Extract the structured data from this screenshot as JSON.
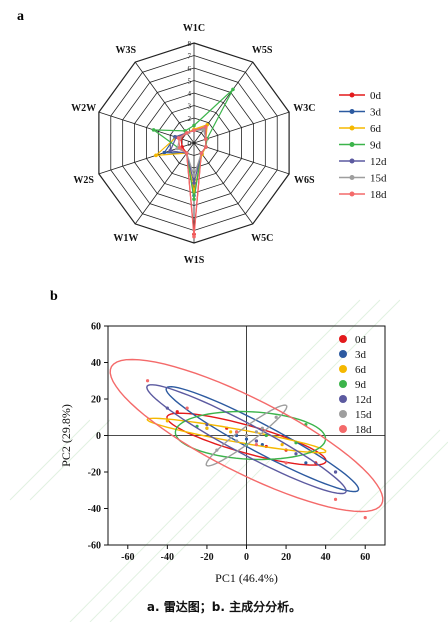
{
  "panel_a_label": "a",
  "panel_b_label": "b",
  "caption": "a. 雷达图；b. 主成分分析。",
  "series_colors": [
    "#e31a1c",
    "#2c5aa0",
    "#f5b800",
    "#3cb44b",
    "#5c5aa0",
    "#9e9e9e",
    "#f46a6a"
  ],
  "chart_data": [
    {
      "type": "radar",
      "axes": [
        "W1C",
        "W5S",
        "W3C",
        "W6S",
        "W5C",
        "W1S",
        "W1W",
        "W2S",
        "W2W",
        "W3S"
      ],
      "r_ticks": [
        "0",
        "1",
        "2",
        "3",
        "4",
        "5",
        "6",
        "7",
        "8"
      ],
      "r_max": 8,
      "legend_position": "right",
      "series": [
        {
          "name": "0d",
          "values": [
            1.0,
            1.6,
            1.0,
            1.0,
            1.0,
            7.3,
            1.0,
            1.0,
            1.1,
            1.0
          ]
        },
        {
          "name": "3d",
          "values": [
            1.0,
            1.5,
            1.0,
            1.0,
            1.0,
            4.2,
            1.0,
            2.5,
            1.6,
            1.0
          ]
        },
        {
          "name": "6d",
          "values": [
            1.1,
            1.8,
            1.0,
            1.0,
            1.1,
            3.9,
            1.0,
            3.2,
            1.5,
            1.0
          ]
        },
        {
          "name": "9d",
          "values": [
            1.4,
            5.3,
            1.1,
            1.0,
            1.0,
            4.5,
            1.0,
            1.3,
            3.4,
            1.2
          ]
        },
        {
          "name": "12d",
          "values": [
            1.0,
            1.6,
            1.0,
            1.0,
            1.0,
            3.2,
            1.0,
            2.0,
            1.5,
            1.0
          ]
        },
        {
          "name": "15d",
          "values": [
            1.0,
            1.3,
            1.0,
            1.0,
            1.0,
            2.6,
            1.0,
            1.4,
            1.2,
            1.0
          ]
        },
        {
          "name": "18d",
          "values": [
            1.0,
            1.6,
            1.0,
            1.0,
            1.0,
            7.5,
            1.0,
            1.2,
            1.3,
            1.0
          ]
        }
      ]
    },
    {
      "type": "scatter",
      "xlabel": "PC1 (46.4%)",
      "ylabel": "PC2 (29.8%)",
      "xlim": [
        -70,
        70
      ],
      "ylim": [
        -60,
        60
      ],
      "x_ticks": [
        -60,
        -40,
        -20,
        0,
        20,
        40,
        60
      ],
      "y_ticks": [
        -60,
        -40,
        -20,
        0,
        20,
        40,
        60
      ],
      "legend_position": "top-right",
      "series": [
        {
          "name": "0d",
          "points": [
            [
              -35,
              13
            ],
            [
              -20,
              6
            ],
            [
              5,
              -3
            ],
            [
              20,
              -8
            ],
            [
              35,
              -15
            ],
            [
              -10,
              4
            ],
            [
              10,
              -6
            ]
          ],
          "ellipse": {
            "cx": 0,
            "cy": -2,
            "rx": 42,
            "ry": 7.5,
            "angle": -17
          }
        },
        {
          "name": "3d",
          "points": [
            [
              -20,
              4
            ],
            [
              -5,
              0
            ],
            [
              8,
              -5
            ],
            [
              30,
              -15
            ],
            [
              45,
              -20
            ],
            [
              0,
              -2
            ]
          ],
          "ellipse": {
            "cx": 8,
            "cy": -2,
            "rx": 56,
            "ry": 7.5,
            "angle": -30
          }
        },
        {
          "name": "6d",
          "points": [
            [
              -40,
              8
            ],
            [
              -20,
              4
            ],
            [
              0,
              0
            ],
            [
              18,
              -5
            ],
            [
              32,
              -9
            ],
            [
              -8,
              2
            ]
          ],
          "ellipse": {
            "cx": -5,
            "cy": 0,
            "rx": 46,
            "ry": 3.5,
            "angle": -11
          }
        },
        {
          "name": "9d",
          "points": [
            [
              -25,
              5
            ],
            [
              -5,
              2
            ],
            [
              10,
              0
            ],
            [
              25,
              -4
            ],
            [
              30,
              6
            ],
            [
              0,
              -5
            ]
          ],
          "ellipse": {
            "cx": 2,
            "cy": 0,
            "rx": 38,
            "ry": 13,
            "angle": -3
          }
        },
        {
          "name": "12d",
          "points": [
            [
              -40,
              15
            ],
            [
              -20,
              6
            ],
            [
              0,
              0
            ],
            [
              25,
              -10
            ],
            [
              45,
              -20
            ],
            [
              5,
              -3
            ]
          ],
          "ellipse": {
            "cx": 0,
            "cy": -2,
            "rx": 58,
            "ry": 8,
            "angle": -30
          }
        },
        {
          "name": "15d",
          "points": [
            [
              -15,
              -8
            ],
            [
              -5,
              -3
            ],
            [
              5,
              2
            ],
            [
              15,
              10
            ],
            [
              0,
              0
            ],
            [
              8,
              4
            ]
          ],
          "ellipse": {
            "cx": 0,
            "cy": 0,
            "rx": 26,
            "ry": 4,
            "angle": 39
          }
        },
        {
          "name": "18d",
          "points": [
            [
              -50,
              30
            ],
            [
              -30,
              15
            ],
            [
              -5,
              2
            ],
            [
              20,
              -15
            ],
            [
              45,
              -35
            ],
            [
              60,
              -45
            ],
            [
              5,
              -5
            ]
          ],
          "ellipse": {
            "cx": 0,
            "cy": 0,
            "rx": 78,
            "ry": 20,
            "angle": -29
          }
        }
      ]
    }
  ]
}
